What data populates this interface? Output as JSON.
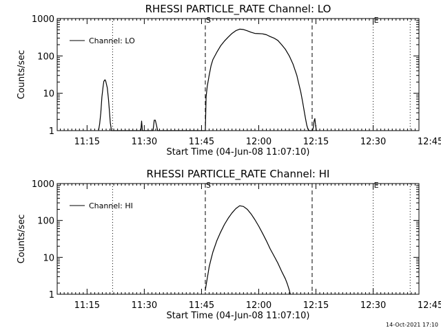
{
  "footer": {
    "timestamp": "14-Oct-2021 17:10"
  },
  "chart_data": [
    {
      "type": "line",
      "title": "RHESSI PARTICLE_RATE Channel: LO",
      "xlabel": "Start Time (04-Jun-08 11:07:10)",
      "ylabel": "Counts/sec",
      "yscale": "log",
      "ylim": [
        1,
        1000
      ],
      "xlim": [
        7.17,
        102.0
      ],
      "xticks": [
        {
          "v": 15,
          "label": "11:15"
        },
        {
          "v": 30,
          "label": "11:30"
        },
        {
          "v": 45,
          "label": "11:45"
        },
        {
          "v": 60,
          "label": "12:00"
        },
        {
          "v": 75,
          "label": "12:15"
        },
        {
          "v": 90,
          "label": "12:30"
        },
        {
          "v": 105,
          "label": "12:45"
        }
      ],
      "yticks": [
        {
          "v": 1,
          "label": "1"
        },
        {
          "v": 10,
          "label": "10"
        },
        {
          "v": 100,
          "label": "100"
        },
        {
          "v": 1000,
          "label": "1000"
        }
      ],
      "legend": "top-left",
      "series": [
        {
          "name": "Channel: LO",
          "x": [
            18.0,
            18.3,
            18.6,
            18.9,
            19.2,
            19.4,
            19.7,
            19.9,
            20.3,
            20.6,
            20.9,
            21.1,
            21.4,
            21.8,
            22.0,
            29.1,
            29.3,
            29.5,
            32.3,
            32.6,
            32.9,
            33.2,
            33.5,
            46.0,
            46.2,
            46.5,
            47.0,
            47.5,
            48.0,
            49.0,
            50.0,
            51.0,
            52.0,
            53.0,
            54.0,
            55.0,
            56.0,
            57.0,
            58.0,
            59.0,
            60.0,
            61.0,
            62.0,
            63.0,
            64.0,
            65.0,
            66.0,
            67.0,
            68.0,
            69.0,
            70.0,
            70.5,
            71.0,
            71.5,
            72.0,
            72.3,
            72.6,
            72.9,
            73.2,
            73.5,
            73.8,
            74.1,
            74.3,
            74.5,
            74.7,
            74.9,
            75.1,
            75.3
          ],
          "y": [
            1.0,
            1.5,
            3.0,
            8.0,
            15.0,
            21.0,
            23.0,
            21.0,
            14.0,
            7.0,
            3.0,
            1.6,
            1.0,
            1.0,
            1.0,
            1.0,
            1.8,
            1.0,
            1.0,
            1.9,
            1.9,
            1.4,
            1.0,
            1.0,
            8.0,
            15.0,
            30.0,
            55.0,
            80.0,
            125.0,
            185.0,
            250.0,
            320.0,
            400.0,
            475.0,
            520.0,
            510.0,
            470.0,
            430.0,
            400.0,
            395.0,
            390.0,
            370.0,
            330.0,
            300.0,
            260.0,
            200.0,
            150.0,
            100.0,
            60.0,
            30.0,
            18.0,
            11.0,
            6.0,
            3.0,
            2.0,
            1.4,
            1.1,
            1.0,
            1.0,
            1.0,
            1.0,
            1.2,
            1.8,
            2.1,
            1.4,
            1.0,
            1.0
          ]
        }
      ],
      "vlines": [
        {
          "x": 21.7,
          "style": "dotted",
          "label": ""
        },
        {
          "x": 46.0,
          "style": "dashed",
          "label": "S"
        },
        {
          "x": 74.0,
          "style": "dashed",
          "label": ""
        },
        {
          "x": 90.0,
          "style": "dotted",
          "label": "E"
        },
        {
          "x": 99.7,
          "style": "dotted",
          "label": ""
        }
      ]
    },
    {
      "type": "line",
      "title": "RHESSI PARTICLE_RATE Channel: HI",
      "xlabel": "Start Time (04-Jun-08 11:07:10)",
      "ylabel": "Counts/sec",
      "yscale": "log",
      "ylim": [
        1,
        1000
      ],
      "xlim": [
        7.17,
        102.0
      ],
      "xticks": [
        {
          "v": 15,
          "label": "11:15"
        },
        {
          "v": 30,
          "label": "11:30"
        },
        {
          "v": 45,
          "label": "11:45"
        },
        {
          "v": 60,
          "label": "12:00"
        },
        {
          "v": 75,
          "label": "12:15"
        },
        {
          "v": 90,
          "label": "12:30"
        },
        {
          "v": 105,
          "label": "12:45"
        }
      ],
      "yticks": [
        {
          "v": 1,
          "label": "1"
        },
        {
          "v": 10,
          "label": "10"
        },
        {
          "v": 100,
          "label": "100"
        },
        {
          "v": 1000,
          "label": "1000"
        }
      ],
      "legend": "top-left",
      "series": [
        {
          "name": "Channel: HI",
          "x": [
            46.0,
            46.3,
            46.7,
            47.0,
            47.5,
            48.0,
            49.0,
            50.0,
            51.0,
            52.0,
            53.0,
            54.0,
            55.0,
            56.0,
            57.0,
            58.0,
            59.0,
            60.0,
            61.0,
            62.0,
            63.0,
            64.0,
            65.0,
            66.0,
            67.0,
            67.5,
            68.0,
            68.3
          ],
          "y": [
            1.3,
            2.0,
            3.5,
            5.5,
            9.0,
            14.0,
            28.0,
            48.0,
            78.0,
            115.0,
            160.0,
            210.0,
            250.0,
            240.0,
            200.0,
            150.0,
            105.0,
            70.0,
            45.0,
            28.0,
            17.0,
            11.0,
            7.0,
            4.2,
            2.6,
            1.9,
            1.3,
            1.0
          ]
        }
      ],
      "vlines": [
        {
          "x": 21.7,
          "style": "dotted",
          "label": ""
        },
        {
          "x": 46.0,
          "style": "dashed",
          "label": "S"
        },
        {
          "x": 74.0,
          "style": "dashed",
          "label": ""
        },
        {
          "x": 90.0,
          "style": "dotted",
          "label": "E"
        },
        {
          "x": 99.7,
          "style": "dotted",
          "label": ""
        }
      ]
    }
  ]
}
